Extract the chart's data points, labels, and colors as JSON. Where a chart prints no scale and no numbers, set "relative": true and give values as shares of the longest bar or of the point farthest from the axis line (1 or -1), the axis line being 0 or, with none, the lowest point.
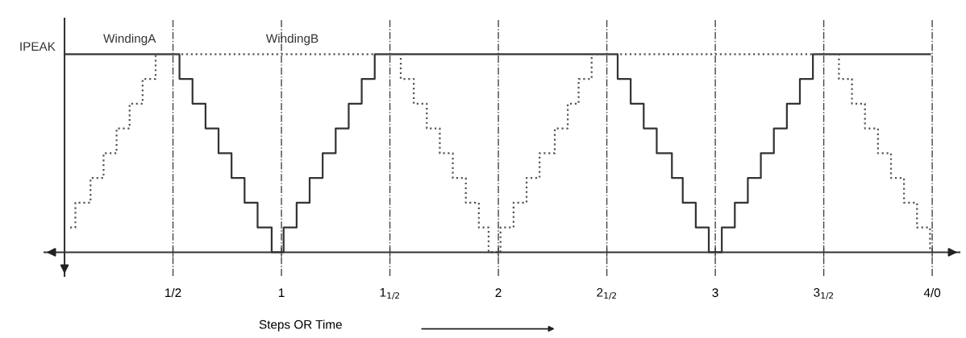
{
  "chart_data": {
    "type": "step",
    "relative": true,
    "xlabel": "Steps OR Time",
    "xlim": [
      -0.093,
      4.126
    ],
    "xticks": [
      {
        "value": 0.5,
        "label": "1/2"
      },
      1,
      {
        "value": 1.5,
        "label": "1$_{1/2}$"
      },
      2,
      {
        "value": 2.5,
        "label": "2$_{1/2}$"
      },
      3,
      {
        "value": 3.5,
        "label": "3$_{1/2}$"
      },
      {
        "value": 4,
        "label": "4/0"
      }
    ],
    "grid": "x",
    "series": [
      {
        "color": "#333333",
        "line_style": "solid",
        "x": [
          0,
          0.53,
          0.59,
          0.65,
          0.71,
          0.77,
          0.83,
          0.89,
          0.955,
          1.01,
          1.07,
          1.13,
          1.19,
          1.25,
          1.31,
          1.37,
          1.43,
          2.55,
          2.61,
          2.67,
          2.73,
          2.8,
          2.85,
          2.91,
          2.97,
          3.03,
          3.09,
          3.15,
          3.21,
          3.27,
          3.33,
          3.39,
          3.45,
          3.99
        ],
        "values": [
          1,
          0.875,
          0.75,
          0.625,
          0.5,
          0.375,
          0.25,
          0.125,
          0,
          0.125,
          0.25,
          0.375,
          0.5,
          0.625,
          0.75,
          0.875,
          1,
          0.875,
          0.75,
          0.625,
          0.5,
          0.375,
          0.25,
          0.125,
          0,
          0.125,
          0.25,
          0.375,
          0.5,
          0.625,
          0.75,
          0.875,
          1,
          1
        ]
      },
      {
        "color": "#555555",
        "line_style": "dotted",
        "x": [
          0.026,
          0.05,
          0.12,
          0.18,
          0.24,
          0.3,
          0.36,
          0.42,
          1.55,
          1.61,
          1.67,
          1.73,
          1.79,
          1.85,
          1.91,
          1.955,
          2.01,
          2.07,
          2.13,
          2.19,
          2.26,
          2.32,
          2.37,
          2.43,
          3.57,
          3.63,
          3.69,
          3.75,
          3.81,
          3.87,
          3.93,
          3.99
        ],
        "values": [
          0.125,
          0.25,
          0.375,
          0.5,
          0.625,
          0.75,
          0.875,
          1,
          0.875,
          0.75,
          0.625,
          0.5,
          0.375,
          0.25,
          0.125,
          0,
          0.125,
          0.25,
          0.375,
          0.5,
          0.625,
          0.75,
          0.875,
          1,
          0.875,
          0.75,
          0.625,
          0.5,
          0.375,
          0.25,
          0.125,
          0
        ]
      }
    ],
    "annotations": [
      {
        "text": "WindingA",
        "x": 0.3,
        "y": 1
      },
      {
        "text": "WindingB",
        "x": 1.05,
        "y": 1
      },
      {
        "text": "IPEAK",
        "x": 0,
        "y": 1
      }
    ]
  }
}
